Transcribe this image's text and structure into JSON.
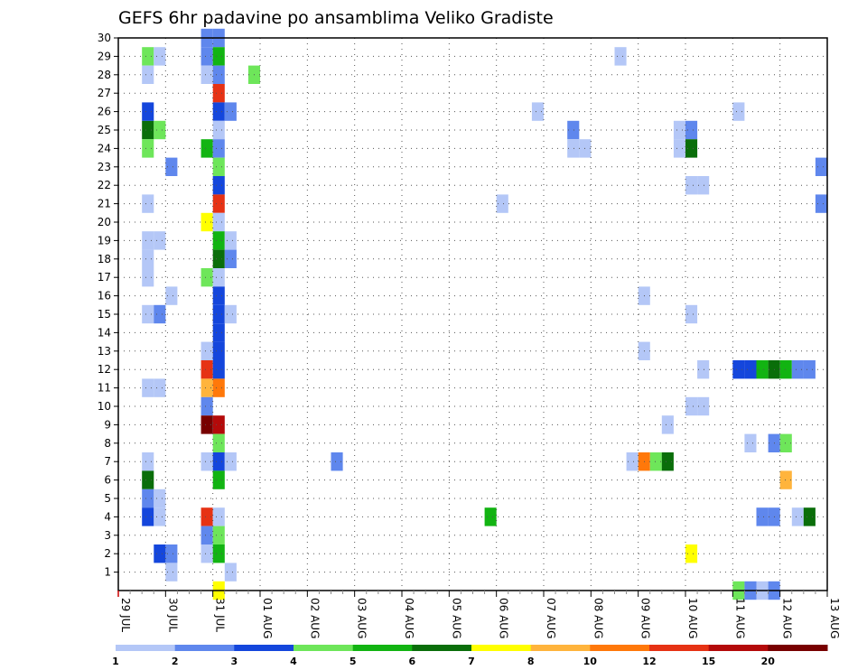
{
  "chart_data": {
    "type": "heatmap",
    "title": "GEFS 6hr padavine po ansamblima Veliko Gradiste",
    "x_tick_labels": [
      "29 JUL",
      "30 JUL",
      "31 JUL",
      "01 AUG",
      "02 AUG",
      "03 AUG",
      "04 AUG",
      "05 AUG",
      "06 AUG",
      "07 AUG",
      "08 AUG",
      "09 AUG",
      "10 AUG",
      "11 AUG",
      "12 AUG",
      "13 AUG"
    ],
    "y_tick_labels": [
      "1",
      "2",
      "3",
      "4",
      "5",
      "6",
      "7",
      "8",
      "9",
      "10",
      "11",
      "12",
      "13",
      "14",
      "15",
      "16",
      "17",
      "18",
      "19",
      "20",
      "21",
      "22",
      "23",
      "24",
      "25",
      "26",
      "27",
      "28",
      "29",
      "30"
    ],
    "x_range_days": [
      0,
      15
    ],
    "y_range": [
      0,
      30
    ],
    "grid": true,
    "legend": {
      "placement": "bottom",
      "labels": [
        "1",
        "2",
        "3",
        "4",
        "5",
        "6",
        "7",
        "8",
        "10",
        "12",
        "15",
        "20"
      ],
      "colors": [
        "#b4c7f7",
        "#5f87ed",
        "#1446dc",
        "#6ee65a",
        "#12b412",
        "#0a6e0a",
        "#ffff00",
        "#ffb43c",
        "#ff780a",
        "#e63214",
        "#b40a0a",
        "#780000"
      ]
    },
    "cells_note": "each cell: [start_day_offset_from_29_JUL_00z, member, precip_mm]",
    "cells": [
      [
        0.5,
        29,
        4.5
      ],
      [
        0.75,
        29,
        1.5
      ],
      [
        0.5,
        28,
        1.5
      ],
      [
        0.5,
        25,
        6.5
      ],
      [
        0.75,
        25,
        4.5
      ],
      [
        0.5,
        26,
        3.5
      ],
      [
        0.5,
        24,
        4.5
      ],
      [
        1.0,
        23,
        2.5
      ],
      [
        0.5,
        21,
        1.5
      ],
      [
        0.5,
        19,
        1.5
      ],
      [
        0.75,
        19,
        1.5
      ],
      [
        0.5,
        18,
        1.5
      ],
      [
        0.5,
        17,
        1.5
      ],
      [
        1.0,
        16,
        1.5
      ],
      [
        0.5,
        15,
        1.5
      ],
      [
        0.75,
        15,
        2.5
      ],
      [
        0.5,
        11,
        1.5
      ],
      [
        0.75,
        11,
        1.5
      ],
      [
        0.5,
        7,
        1.5
      ],
      [
        0.5,
        6,
        6.5
      ],
      [
        0.5,
        5,
        2.5
      ],
      [
        0.75,
        5,
        1.5
      ],
      [
        0.5,
        4,
        3.5
      ],
      [
        0.75,
        4,
        1.5
      ],
      [
        0.75,
        2,
        3.5
      ],
      [
        1.0,
        2,
        2.5
      ],
      [
        1.0,
        1,
        1.5
      ],
      [
        1.75,
        30,
        2.5
      ],
      [
        2.0,
        30,
        2.5
      ],
      [
        1.75,
        29,
        2.5
      ],
      [
        2.0,
        29,
        5.5
      ],
      [
        1.75,
        28,
        1.5
      ],
      [
        2.0,
        28,
        2.5
      ],
      [
        2.0,
        27,
        14
      ],
      [
        2.0,
        26,
        3.5
      ],
      [
        2.25,
        26,
        2.5
      ],
      [
        2.0,
        25,
        1.5
      ],
      [
        1.75,
        24,
        5.5
      ],
      [
        2.0,
        24,
        2.5
      ],
      [
        2.0,
        23,
        4.5
      ],
      [
        2.0,
        22,
        3.5
      ],
      [
        2.0,
        21,
        14
      ],
      [
        1.75,
        20,
        7.5
      ],
      [
        2.0,
        20,
        1.5
      ],
      [
        2.0,
        19,
        5.5
      ],
      [
        2.25,
        19,
        1.5
      ],
      [
        2.0,
        18,
        6.5
      ],
      [
        2.25,
        18,
        2.5
      ],
      [
        1.75,
        17,
        4.5
      ],
      [
        2.0,
        17,
        1.5
      ],
      [
        2.0,
        16,
        3.5
      ],
      [
        2.0,
        15,
        3.5
      ],
      [
        2.25,
        15,
        1.5
      ],
      [
        2.0,
        14,
        3.5
      ],
      [
        1.75,
        13,
        1.5
      ],
      [
        2.0,
        13,
        3.5
      ],
      [
        1.75,
        12,
        14
      ],
      [
        2.0,
        12,
        3.5
      ],
      [
        1.75,
        11,
        9
      ],
      [
        2.0,
        11,
        11
      ],
      [
        1.75,
        10,
        2.5
      ],
      [
        1.75,
        9,
        22
      ],
      [
        2.0,
        9,
        18
      ],
      [
        2.0,
        8,
        4.5
      ],
      [
        1.75,
        7,
        1.5
      ],
      [
        2.0,
        7,
        3.5
      ],
      [
        2.25,
        7,
        1.5
      ],
      [
        2.0,
        6,
        5.5
      ],
      [
        1.75,
        4,
        14
      ],
      [
        2.0,
        4,
        1.5
      ],
      [
        1.75,
        3,
        2.5
      ],
      [
        2.0,
        3,
        4.5
      ],
      [
        1.75,
        2,
        1.5
      ],
      [
        2.0,
        2,
        5.5
      ],
      [
        2.25,
        1,
        1.5
      ],
      [
        2.0,
        0,
        7.5
      ],
      [
        2.75,
        28,
        4.5
      ],
      [
        4.5,
        7,
        2.5
      ],
      [
        7.75,
        4,
        5.5
      ],
      [
        8.0,
        21,
        1.5
      ],
      [
        8.75,
        26,
        1.5
      ],
      [
        9.5,
        25,
        2.5
      ],
      [
        9.5,
        24,
        1.5
      ],
      [
        9.75,
        24,
        1.5
      ],
      [
        10.5,
        29,
        1.5
      ],
      [
        11.0,
        16,
        1.5
      ],
      [
        11.0,
        13,
        1.5
      ],
      [
        10.75,
        7,
        1.5
      ],
      [
        11.0,
        7,
        11
      ],
      [
        11.25,
        7,
        4.5
      ],
      [
        11.5,
        7,
        6.5
      ],
      [
        11.5,
        9,
        1.5
      ],
      [
        11.75,
        25,
        1.5
      ],
      [
        11.75,
        24,
        1.5
      ],
      [
        12.0,
        25,
        2.5
      ],
      [
        12.0,
        24,
        6.5
      ],
      [
        12.0,
        22,
        1.5
      ],
      [
        12.25,
        22,
        1.5
      ],
      [
        12.0,
        15,
        1.5
      ],
      [
        12.25,
        12,
        1.5
      ],
      [
        12.0,
        10,
        1.5
      ],
      [
        12.25,
        10,
        1.5
      ],
      [
        12.0,
        2,
        7.5
      ],
      [
        13.0,
        26,
        1.5
      ],
      [
        13.0,
        12,
        3.5
      ],
      [
        13.25,
        12,
        3.5
      ],
      [
        13.5,
        12,
        5.5
      ],
      [
        13.75,
        12,
        6.5
      ],
      [
        13.25,
        8,
        1.5
      ],
      [
        13.5,
        4,
        2.5
      ],
      [
        13.75,
        4,
        2.5
      ],
      [
        13.75,
        8,
        2.5
      ],
      [
        14.0,
        8,
        4.5
      ],
      [
        14.0,
        6,
        9
      ],
      [
        14.25,
        4,
        1.5
      ],
      [
        14.5,
        4,
        6.5
      ],
      [
        14.0,
        12,
        5.5
      ],
      [
        14.25,
        12,
        2.5
      ],
      [
        14.5,
        12,
        2.5
      ],
      [
        14.75,
        23,
        2.5
      ],
      [
        14.75,
        21,
        2.5
      ],
      [
        13.0,
        0,
        4.5
      ],
      [
        13.25,
        0,
        2.5
      ],
      [
        13.5,
        0,
        1.5
      ],
      [
        13.75,
        0,
        2.5
      ]
    ]
  }
}
